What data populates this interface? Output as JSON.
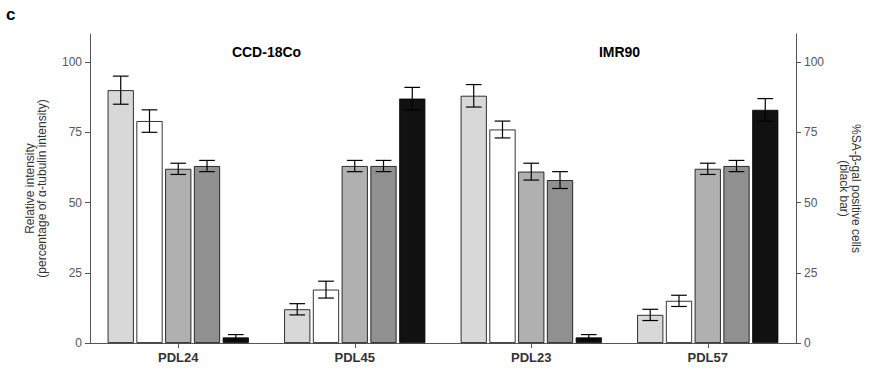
{
  "chart_data": {
    "type": "bar",
    "categories": [
      "PDL24",
      "PDL45",
      "PDL23",
      "PDL57"
    ],
    "series": [
      {
        "color": "#d8d8d8",
        "values": [
          90,
          12,
          88,
          10
        ],
        "errors": [
          5,
          2,
          4,
          2
        ]
      },
      {
        "color": "#ffffff",
        "values": [
          79,
          19,
          76,
          15
        ],
        "errors": [
          4,
          3,
          3,
          2
        ]
      },
      {
        "color": "#b0b0b0",
        "values": [
          62,
          63,
          61,
          62
        ],
        "errors": [
          2,
          2,
          3,
          2
        ]
      },
      {
        "color": "#909090",
        "values": [
          63,
          63,
          58,
          63
        ],
        "errors": [
          2,
          2,
          3,
          2
        ]
      },
      {
        "color": "#111111",
        "values": [
          2,
          87,
          2,
          83
        ],
        "errors": [
          1,
          4,
          1,
          4
        ]
      }
    ],
    "ylabel": "Relative intensity\n(percentage of α-tubulin intensity)",
    "y2label": "%SA-β-gal positive cells\n(black bar)",
    "ylim": [
      0,
      110
    ],
    "yticks": [
      0,
      25,
      50,
      75,
      100
    ],
    "y2lim": [
      0,
      110
    ],
    "y2ticks": [
      0,
      25,
      50,
      75,
      100
    ],
    "grid": false,
    "annotations": [
      {
        "text": "CCD-18Co",
        "between": [
          "PDL24",
          "PDL45"
        ],
        "y": 106
      },
      {
        "text": "IMR90",
        "between": [
          "PDL23",
          "PDL57"
        ],
        "y": 106
      }
    ],
    "panel_label": "c"
  }
}
